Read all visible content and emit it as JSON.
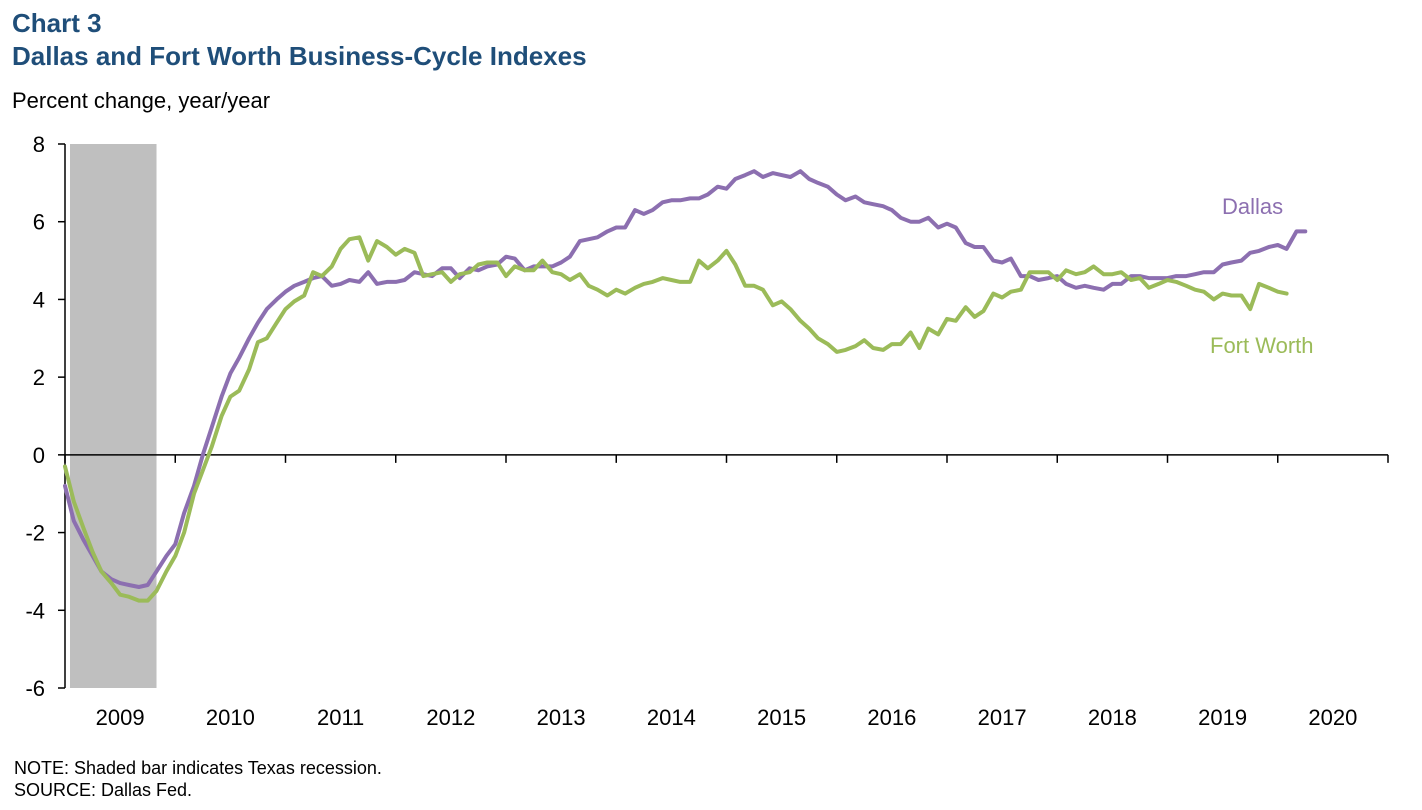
{
  "header": {
    "chart_number": "Chart 3",
    "title": "Dallas and Fort Worth Business-Cycle Indexes",
    "y_unit": "Percent change, year/year"
  },
  "footer": {
    "note": "NOTE: Shaded bar indicates Texas recession.",
    "source": "SOURCE: Dallas Fed."
  },
  "chart_data": {
    "type": "line",
    "title": "Dallas and Fort Worth Business-Cycle Indexes",
    "ylabel": "Percent change, year/year",
    "ylim": [
      -6,
      8
    ],
    "yticks": [
      -6,
      -4,
      -2,
      0,
      2,
      4,
      6,
      8
    ],
    "xlim": [
      2008.5,
      2020.5
    ],
    "xticks": [
      2009,
      2010,
      2011,
      2012,
      2013,
      2014,
      2015,
      2016,
      2017,
      2018,
      2019,
      2020
    ],
    "xtick_labels": [
      "2009",
      "2010",
      "2011",
      "2012",
      "2013",
      "2014",
      "2015",
      "2016",
      "2017",
      "2018",
      "2019",
      "2020"
    ],
    "grid": false,
    "recession_shading": {
      "start": 2008.5,
      "end": 2009.33,
      "color": "#bfbfbf"
    },
    "series": [
      {
        "name": "Dallas",
        "color": "#8c6fb0",
        "points": [
          [
            2008.5,
            -0.8
          ],
          [
            2008.58,
            -1.7
          ],
          [
            2008.67,
            -2.2
          ],
          [
            2008.75,
            -2.6
          ],
          [
            2008.83,
            -3.0
          ],
          [
            2008.92,
            -3.2
          ],
          [
            2009.0,
            -3.3
          ],
          [
            2009.08,
            -3.35
          ],
          [
            2009.17,
            -3.4
          ],
          [
            2009.25,
            -3.35
          ],
          [
            2009.33,
            -3.0
          ],
          [
            2009.42,
            -2.6
          ],
          [
            2009.5,
            -2.3
          ],
          [
            2009.58,
            -1.5
          ],
          [
            2009.67,
            -0.8
          ],
          [
            2009.75,
            0.0
          ],
          [
            2009.83,
            0.7
          ],
          [
            2009.92,
            1.5
          ],
          [
            2010.0,
            2.1
          ],
          [
            2010.08,
            2.5
          ],
          [
            2010.17,
            3.0
          ],
          [
            2010.25,
            3.4
          ],
          [
            2010.33,
            3.75
          ],
          [
            2010.42,
            4.0
          ],
          [
            2010.5,
            4.2
          ],
          [
            2010.58,
            4.35
          ],
          [
            2010.67,
            4.45
          ],
          [
            2010.75,
            4.55
          ],
          [
            2010.83,
            4.6
          ],
          [
            2010.92,
            4.35
          ],
          [
            2011.0,
            4.4
          ],
          [
            2011.08,
            4.5
          ],
          [
            2011.17,
            4.45
          ],
          [
            2011.25,
            4.7
          ],
          [
            2011.33,
            4.4
          ],
          [
            2011.42,
            4.45
          ],
          [
            2011.5,
            4.45
          ],
          [
            2011.58,
            4.5
          ],
          [
            2011.67,
            4.7
          ],
          [
            2011.75,
            4.65
          ],
          [
            2011.83,
            4.6
          ],
          [
            2011.92,
            4.8
          ],
          [
            2012.0,
            4.8
          ],
          [
            2012.08,
            4.55
          ],
          [
            2012.17,
            4.8
          ],
          [
            2012.25,
            4.75
          ],
          [
            2012.33,
            4.85
          ],
          [
            2012.42,
            4.9
          ],
          [
            2012.5,
            5.1
          ],
          [
            2012.58,
            5.05
          ],
          [
            2012.67,
            4.75
          ],
          [
            2012.75,
            4.85
          ],
          [
            2012.83,
            4.85
          ],
          [
            2012.92,
            4.85
          ],
          [
            2013.0,
            4.95
          ],
          [
            2013.08,
            5.1
          ],
          [
            2013.17,
            5.5
          ],
          [
            2013.25,
            5.55
          ],
          [
            2013.33,
            5.6
          ],
          [
            2013.42,
            5.75
          ],
          [
            2013.5,
            5.85
          ],
          [
            2013.58,
            5.85
          ],
          [
            2013.67,
            6.3
          ],
          [
            2013.75,
            6.2
          ],
          [
            2013.83,
            6.3
          ],
          [
            2013.92,
            6.5
          ],
          [
            2014.0,
            6.55
          ],
          [
            2014.08,
            6.55
          ],
          [
            2014.17,
            6.6
          ],
          [
            2014.25,
            6.6
          ],
          [
            2014.33,
            6.7
          ],
          [
            2014.42,
            6.9
          ],
          [
            2014.5,
            6.85
          ],
          [
            2014.58,
            7.1
          ],
          [
            2014.67,
            7.2
          ],
          [
            2014.75,
            7.3
          ],
          [
            2014.83,
            7.15
          ],
          [
            2014.92,
            7.25
          ],
          [
            2015.0,
            7.2
          ],
          [
            2015.08,
            7.15
          ],
          [
            2015.17,
            7.3
          ],
          [
            2015.25,
            7.1
          ],
          [
            2015.33,
            7.0
          ],
          [
            2015.42,
            6.9
          ],
          [
            2015.5,
            6.7
          ],
          [
            2015.58,
            6.55
          ],
          [
            2015.67,
            6.65
          ],
          [
            2015.75,
            6.5
          ],
          [
            2015.83,
            6.45
          ],
          [
            2015.92,
            6.4
          ],
          [
            2016.0,
            6.3
          ],
          [
            2016.08,
            6.1
          ],
          [
            2016.17,
            6.0
          ],
          [
            2016.25,
            6.0
          ],
          [
            2016.33,
            6.1
          ],
          [
            2016.42,
            5.85
          ],
          [
            2016.5,
            5.95
          ],
          [
            2016.58,
            5.85
          ],
          [
            2016.67,
            5.45
          ],
          [
            2016.75,
            5.35
          ],
          [
            2016.83,
            5.35
          ],
          [
            2016.92,
            5.0
          ],
          [
            2017.0,
            4.95
          ],
          [
            2017.08,
            5.05
          ],
          [
            2017.17,
            4.6
          ],
          [
            2017.25,
            4.6
          ],
          [
            2017.33,
            4.5
          ],
          [
            2017.42,
            4.55
          ],
          [
            2017.5,
            4.6
          ],
          [
            2017.58,
            4.4
          ],
          [
            2017.67,
            4.3
          ],
          [
            2017.75,
            4.35
          ],
          [
            2017.83,
            4.3
          ],
          [
            2017.92,
            4.25
          ],
          [
            2018.0,
            4.4
          ],
          [
            2018.08,
            4.4
          ],
          [
            2018.17,
            4.6
          ],
          [
            2018.25,
            4.6
          ],
          [
            2018.33,
            4.55
          ],
          [
            2018.42,
            4.55
          ],
          [
            2018.5,
            4.55
          ],
          [
            2018.58,
            4.6
          ],
          [
            2018.67,
            4.6
          ],
          [
            2018.75,
            4.65
          ],
          [
            2018.83,
            4.7
          ],
          [
            2018.92,
            4.7
          ],
          [
            2019.0,
            4.9
          ],
          [
            2019.08,
            4.95
          ],
          [
            2019.17,
            5.0
          ],
          [
            2019.25,
            5.2
          ],
          [
            2019.33,
            5.25
          ],
          [
            2019.42,
            5.35
          ],
          [
            2019.5,
            5.4
          ],
          [
            2019.58,
            5.3
          ],
          [
            2019.67,
            5.75
          ],
          [
            2019.75,
            5.75
          ]
        ]
      },
      {
        "name": "Fort Worth",
        "color": "#9bbb59",
        "points": [
          [
            2008.5,
            -0.3
          ],
          [
            2008.58,
            -1.2
          ],
          [
            2008.67,
            -1.9
          ],
          [
            2008.75,
            -2.5
          ],
          [
            2008.83,
            -3.0
          ],
          [
            2008.92,
            -3.3
          ],
          [
            2009.0,
            -3.6
          ],
          [
            2009.08,
            -3.65
          ],
          [
            2009.17,
            -3.75
          ],
          [
            2009.25,
            -3.75
          ],
          [
            2009.33,
            -3.5
          ],
          [
            2009.42,
            -3.0
          ],
          [
            2009.5,
            -2.6
          ],
          [
            2009.58,
            -2.0
          ],
          [
            2009.67,
            -1.0
          ],
          [
            2009.75,
            -0.4
          ],
          [
            2009.83,
            0.2
          ],
          [
            2009.92,
            1.0
          ],
          [
            2010.0,
            1.5
          ],
          [
            2010.08,
            1.65
          ],
          [
            2010.17,
            2.2
          ],
          [
            2010.25,
            2.9
          ],
          [
            2010.33,
            3.0
          ],
          [
            2010.42,
            3.4
          ],
          [
            2010.5,
            3.75
          ],
          [
            2010.58,
            3.95
          ],
          [
            2010.67,
            4.1
          ],
          [
            2010.75,
            4.7
          ],
          [
            2010.83,
            4.6
          ],
          [
            2010.92,
            4.85
          ],
          [
            2011.0,
            5.3
          ],
          [
            2011.08,
            5.55
          ],
          [
            2011.17,
            5.6
          ],
          [
            2011.25,
            5.0
          ],
          [
            2011.33,
            5.5
          ],
          [
            2011.42,
            5.35
          ],
          [
            2011.5,
            5.15
          ],
          [
            2011.58,
            5.3
          ],
          [
            2011.67,
            5.2
          ],
          [
            2011.75,
            4.6
          ],
          [
            2011.83,
            4.65
          ],
          [
            2011.92,
            4.7
          ],
          [
            2012.0,
            4.45
          ],
          [
            2012.08,
            4.65
          ],
          [
            2012.17,
            4.7
          ],
          [
            2012.25,
            4.9
          ],
          [
            2012.33,
            4.95
          ],
          [
            2012.42,
            4.95
          ],
          [
            2012.5,
            4.6
          ],
          [
            2012.58,
            4.85
          ],
          [
            2012.67,
            4.75
          ],
          [
            2012.75,
            4.75
          ],
          [
            2012.83,
            5.0
          ],
          [
            2012.92,
            4.7
          ],
          [
            2013.0,
            4.65
          ],
          [
            2013.08,
            4.5
          ],
          [
            2013.17,
            4.65
          ],
          [
            2013.25,
            4.35
          ],
          [
            2013.33,
            4.25
          ],
          [
            2013.42,
            4.1
          ],
          [
            2013.5,
            4.25
          ],
          [
            2013.58,
            4.15
          ],
          [
            2013.67,
            4.3
          ],
          [
            2013.75,
            4.4
          ],
          [
            2013.83,
            4.45
          ],
          [
            2013.92,
            4.55
          ],
          [
            2014.0,
            4.5
          ],
          [
            2014.08,
            4.45
          ],
          [
            2014.17,
            4.45
          ],
          [
            2014.25,
            5.0
          ],
          [
            2014.33,
            4.8
          ],
          [
            2014.42,
            5.0
          ],
          [
            2014.5,
            5.25
          ],
          [
            2014.58,
            4.9
          ],
          [
            2014.67,
            4.35
          ],
          [
            2014.75,
            4.35
          ],
          [
            2014.83,
            4.25
          ],
          [
            2014.92,
            3.85
          ],
          [
            2015.0,
            3.95
          ],
          [
            2015.08,
            3.75
          ],
          [
            2015.17,
            3.45
          ],
          [
            2015.25,
            3.25
          ],
          [
            2015.33,
            3.0
          ],
          [
            2015.42,
            2.85
          ],
          [
            2015.5,
            2.65
          ],
          [
            2015.58,
            2.7
          ],
          [
            2015.67,
            2.8
          ],
          [
            2015.75,
            2.95
          ],
          [
            2015.83,
            2.75
          ],
          [
            2015.92,
            2.7
          ],
          [
            2016.0,
            2.85
          ],
          [
            2016.08,
            2.85
          ],
          [
            2016.17,
            3.15
          ],
          [
            2016.25,
            2.75
          ],
          [
            2016.33,
            3.25
          ],
          [
            2016.42,
            3.1
          ],
          [
            2016.5,
            3.5
          ],
          [
            2016.58,
            3.45
          ],
          [
            2016.67,
            3.8
          ],
          [
            2016.75,
            3.55
          ],
          [
            2016.83,
            3.7
          ],
          [
            2016.92,
            4.15
          ],
          [
            2017.0,
            4.05
          ],
          [
            2017.08,
            4.2
          ],
          [
            2017.17,
            4.25
          ],
          [
            2017.25,
            4.7
          ],
          [
            2017.33,
            4.7
          ],
          [
            2017.42,
            4.7
          ],
          [
            2017.5,
            4.5
          ],
          [
            2017.58,
            4.75
          ],
          [
            2017.67,
            4.65
          ],
          [
            2017.75,
            4.7
          ],
          [
            2017.83,
            4.85
          ],
          [
            2017.92,
            4.65
          ],
          [
            2018.0,
            4.65
          ],
          [
            2018.08,
            4.7
          ],
          [
            2018.17,
            4.5
          ],
          [
            2018.25,
            4.55
          ],
          [
            2018.33,
            4.3
          ],
          [
            2018.42,
            4.4
          ],
          [
            2018.5,
            4.5
          ],
          [
            2018.58,
            4.45
          ],
          [
            2018.67,
            4.35
          ],
          [
            2018.75,
            4.25
          ],
          [
            2018.83,
            4.2
          ],
          [
            2018.92,
            4.0
          ],
          [
            2019.0,
            4.15
          ],
          [
            2019.08,
            4.1
          ],
          [
            2019.17,
            4.1
          ],
          [
            2019.25,
            3.75
          ],
          [
            2019.33,
            4.4
          ],
          [
            2019.42,
            4.3
          ],
          [
            2019.5,
            4.2
          ],
          [
            2019.58,
            4.15
          ]
        ]
      }
    ]
  }
}
